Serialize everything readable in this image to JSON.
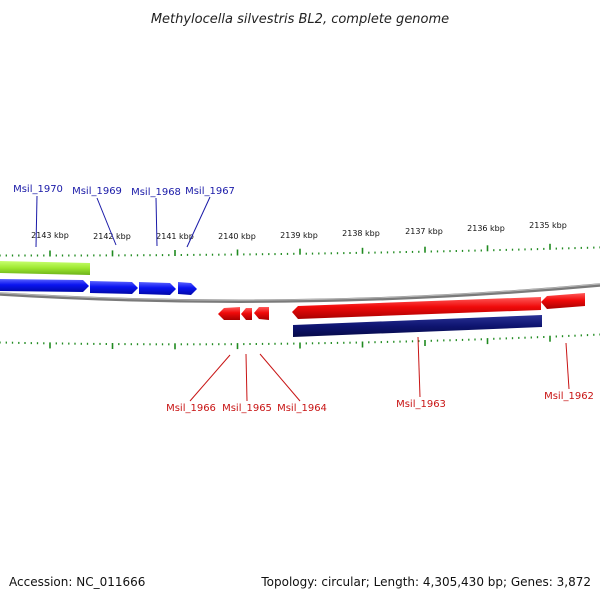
{
  "title": "Methylocella silvestris BL2, complete genome",
  "footer": {
    "accession": "Accession: NC_011666",
    "topology": "Topology: circular; Length: 4,305,430 bp; Genes: 3,872"
  },
  "scale": {
    "labels": [
      "2143 kbp",
      "2142 kbp",
      "2141 kbp",
      "2140 kbp",
      "2139 kbp",
      "2138 kbp",
      "2137 kbp",
      "2136 kbp",
      "2135 kbp"
    ]
  },
  "colors": {
    "forward_gene": "#0a14f0",
    "reverse_gene": "#f00a0a",
    "forward_label": "#1a1aa8",
    "reverse_label": "#c81414",
    "tick": "#1f8a1f",
    "backbone": "#7a7a7a",
    "green_feature": "#9ee830",
    "navy_feature": "#0e1470"
  },
  "top_genes": [
    "Msil_1970",
    "Msil_1969",
    "Msil_1968",
    "Msil_1967"
  ],
  "bottom_genes": [
    "Msil_1966",
    "Msil_1965",
    "Msil_1964",
    "Msil_1963",
    "Msil_1962"
  ]
}
